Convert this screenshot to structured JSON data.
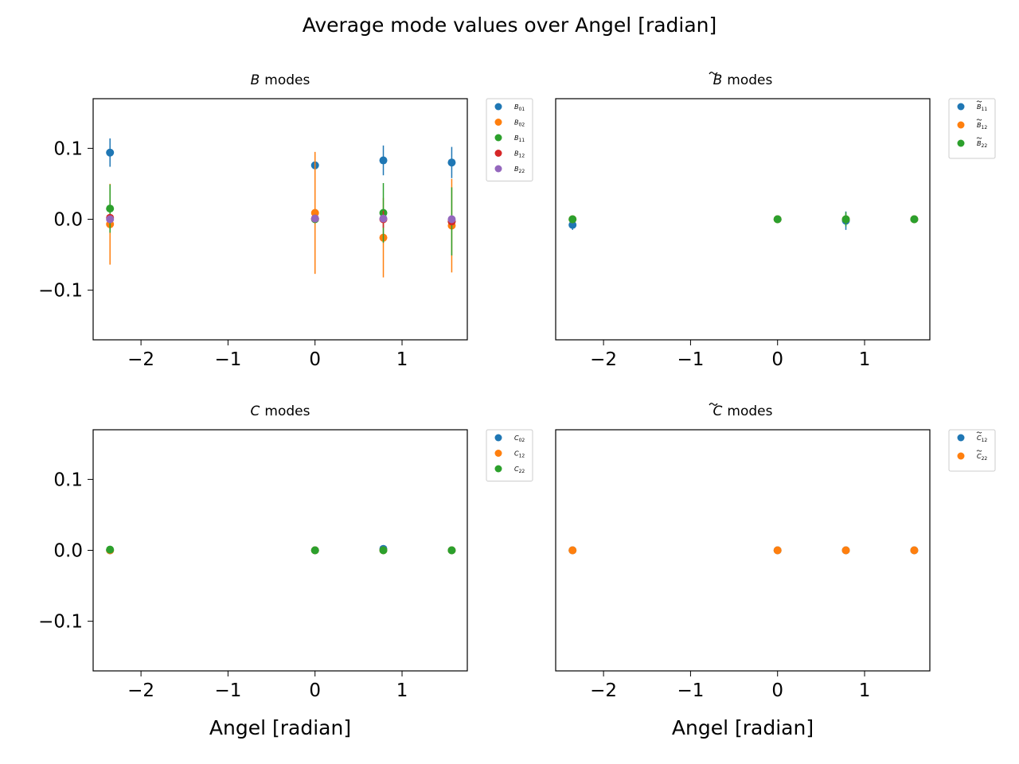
{
  "suptitle": "Average mode values over Angel [radian]",
  "colors": {
    "blue": "#1f77b4",
    "orange": "#ff7f0e",
    "green": "#2ca02c",
    "red": "#d62728",
    "purple": "#9467bd"
  },
  "chart_data": [
    {
      "type": "scatter",
      "title": "B modes",
      "title_symbol": "B",
      "title_text": "modes",
      "xlabel": "",
      "ylabel": "",
      "xlim": [
        -2.55,
        1.75
      ],
      "ylim": [
        -0.17,
        0.17
      ],
      "xticks": [
        "−2",
        "−1",
        "0",
        "1"
      ],
      "xtick_values": [
        -2,
        -1,
        0,
        1
      ],
      "yticks": [
        "0.1",
        "0.0",
        "−0.1"
      ],
      "ytick_values": [
        0.1,
        0.0,
        -0.1
      ],
      "show_yticks": true,
      "legend": "outside upper right",
      "series": [
        {
          "name": "B01",
          "label_main": "B",
          "label_sub": "01",
          "tilde": false,
          "color": "#1f77b4",
          "x": [
            -2.356,
            0.0,
            0.785,
            1.571
          ],
          "y": [
            0.094,
            0.076,
            0.083,
            0.08
          ],
          "err": [
            0.02,
            0.0,
            0.021,
            0.022
          ]
        },
        {
          "name": "B02",
          "label_main": "B",
          "label_sub": "02",
          "tilde": false,
          "color": "#ff7f0e",
          "x": [
            -2.356,
            0.0,
            0.785,
            1.571
          ],
          "y": [
            -0.007,
            0.009,
            -0.026,
            -0.009
          ],
          "err": [
            0.057,
            0.086,
            0.056,
            0.066
          ]
        },
        {
          "name": "B11",
          "label_main": "B",
          "label_sub": "11",
          "tilde": false,
          "color": "#2ca02c",
          "x": [
            -2.356,
            0.0,
            0.785,
            1.571
          ],
          "y": [
            0.015,
            0.0,
            0.009,
            -0.003
          ],
          "err": [
            0.034,
            0.0,
            0.042,
            0.048
          ]
        },
        {
          "name": "B12",
          "label_main": "B",
          "label_sub": "12",
          "tilde": false,
          "color": "#d62728",
          "x": [
            -2.356,
            0.0,
            0.785,
            1.571
          ],
          "y": [
            0.002,
            0.001,
            0.0,
            -0.003
          ],
          "err": [
            0.003,
            0.002,
            0.012,
            0.004
          ]
        },
        {
          "name": "B22",
          "label_main": "B",
          "label_sub": "22",
          "tilde": false,
          "color": "#9467bd",
          "x": [
            -2.356,
            0.0,
            0.785,
            1.571
          ],
          "y": [
            0.0,
            0.001,
            0.001,
            0.0
          ],
          "err": [
            0.004,
            0.003,
            0.003,
            0.005
          ]
        }
      ]
    },
    {
      "type": "scatter",
      "title": "B̃ modes",
      "title_symbol": "B",
      "title_tilde": true,
      "title_text": "modes",
      "xlabel": "",
      "ylabel": "",
      "xlim": [
        -2.55,
        1.75
      ],
      "ylim": [
        -0.17,
        0.17
      ],
      "xticks": [
        "−2",
        "−1",
        "0",
        "1"
      ],
      "xtick_values": [
        -2,
        -1,
        0,
        1
      ],
      "yticks": [],
      "ytick_values": [],
      "show_yticks": false,
      "legend": "outside upper right",
      "series": [
        {
          "name": "B̃11",
          "label_main": "B",
          "label_sub": "11",
          "tilde": true,
          "color": "#1f77b4",
          "x": [
            -2.356,
            0.0,
            0.785,
            1.571
          ],
          "y": [
            -0.008,
            0.0,
            -0.002,
            0.0
          ],
          "err": [
            0.007,
            0.001,
            0.013,
            0.002
          ]
        },
        {
          "name": "B̃12",
          "label_main": "B",
          "label_sub": "12",
          "tilde": true,
          "color": "#ff7f0e",
          "x": [
            -2.356,
            0.0,
            0.785,
            1.571
          ],
          "y": [
            0.0,
            0.0,
            0.0,
            0.0
          ],
          "err": [
            0.001,
            0.001,
            0.002,
            0.001
          ]
        },
        {
          "name": "B̃22",
          "label_main": "B",
          "label_sub": "22",
          "tilde": true,
          "color": "#2ca02c",
          "x": [
            -2.356,
            0.0,
            0.785,
            1.571
          ],
          "y": [
            0.0,
            0.0,
            0.0,
            0.0
          ],
          "err": [
            0.003,
            0.002,
            0.01,
            0.003
          ]
        }
      ]
    },
    {
      "type": "scatter",
      "title": "C modes",
      "title_symbol": "C",
      "title_text": "modes",
      "xlabel": "Angel [radian]",
      "ylabel": "",
      "xlim": [
        -2.55,
        1.75
      ],
      "ylim": [
        -0.17,
        0.17
      ],
      "xticks": [
        "−2",
        "−1",
        "0",
        "1"
      ],
      "xtick_values": [
        -2,
        -1,
        0,
        1
      ],
      "yticks": [
        "0.1",
        "0.0",
        "−0.1"
      ],
      "ytick_values": [
        0.1,
        0.0,
        -0.1
      ],
      "show_yticks": true,
      "legend": "outside upper right",
      "series": [
        {
          "name": "C02",
          "label_main": "C",
          "label_sub": "02",
          "tilde": false,
          "color": "#1f77b4",
          "x": [
            -2.356,
            0.0,
            0.785,
            1.571
          ],
          "y": [
            0.0,
            0.0,
            0.002,
            0.0
          ],
          "err": [
            0.001,
            0.0,
            0.001,
            0.0
          ]
        },
        {
          "name": "C12",
          "label_main": "C",
          "label_sub": "12",
          "tilde": false,
          "color": "#ff7f0e",
          "x": [
            -2.356,
            0.0,
            0.785,
            1.571
          ],
          "y": [
            0.0,
            0.0,
            0.0,
            0.0
          ],
          "err": [
            0.0,
            0.0,
            0.0,
            0.0
          ]
        },
        {
          "name": "C22",
          "label_main": "C",
          "label_sub": "22",
          "tilde": false,
          "color": "#2ca02c",
          "x": [
            -2.356,
            0.0,
            0.785,
            1.571
          ],
          "y": [
            0.001,
            0.0,
            0.0,
            0.0
          ],
          "err": [
            0.002,
            0.0,
            0.001,
            0.0
          ]
        }
      ]
    },
    {
      "type": "scatter",
      "title": "C̃ modes",
      "title_symbol": "C",
      "title_tilde": true,
      "title_text": "modes",
      "xlabel": "Angel [radian]",
      "ylabel": "",
      "xlim": [
        -2.55,
        1.75
      ],
      "ylim": [
        -0.17,
        0.17
      ],
      "xticks": [
        "−2",
        "−1",
        "0",
        "1"
      ],
      "xtick_values": [
        -2,
        -1,
        0,
        1
      ],
      "yticks": [],
      "ytick_values": [],
      "show_yticks": false,
      "legend": "outside upper right",
      "series": [
        {
          "name": "C̃12",
          "label_main": "C",
          "label_sub": "12",
          "tilde": true,
          "color": "#1f77b4",
          "x": [
            -2.356,
            0.0,
            0.785,
            1.571
          ],
          "y": [
            0.0,
            0.0,
            0.0,
            0.0
          ],
          "err": [
            0.0,
            0.0,
            0.0,
            0.0
          ]
        },
        {
          "name": "C̃22",
          "label_main": "C",
          "label_sub": "22",
          "tilde": true,
          "color": "#ff7f0e",
          "x": [
            -2.356,
            0.0,
            0.785,
            1.571
          ],
          "y": [
            0.0,
            0.0,
            0.0,
            0.0
          ],
          "err": [
            0.0,
            0.0,
            0.0,
            0.0
          ]
        }
      ]
    }
  ]
}
